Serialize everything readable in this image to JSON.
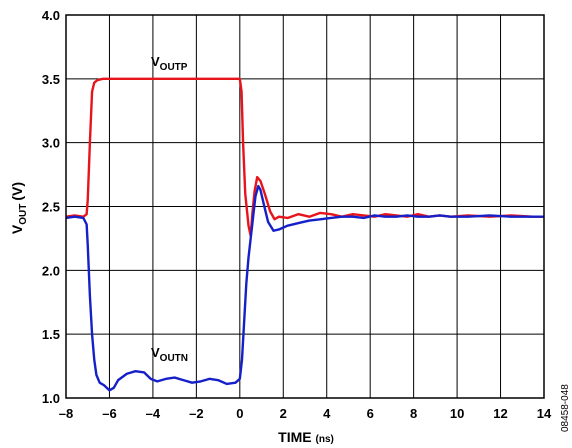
{
  "chart_data": {
    "type": "line",
    "xlabel": {
      "main": "TIME",
      "unit": "(ns)"
    },
    "ylabel": {
      "prefix": "V",
      "subscript": "OUT",
      "unit": "(V)"
    },
    "xlim": [
      -8,
      14
    ],
    "ylim": [
      1.0,
      4.0
    ],
    "x_ticks": [
      -8,
      -6,
      -4,
      -2,
      0,
      2,
      4,
      6,
      8,
      10,
      12,
      14
    ],
    "x_tick_labels": [
      "–8",
      "–6",
      "–4",
      "–2",
      "0",
      "2",
      "4",
      "6",
      "8",
      "10",
      "12",
      "14"
    ],
    "y_ticks": [
      1.0,
      1.5,
      2.0,
      2.5,
      3.0,
      3.5,
      4.0
    ],
    "y_tick_labels": [
      "1.0",
      "1.5",
      "2.0",
      "2.5",
      "3.0",
      "3.5",
      "4.0"
    ],
    "grid": true,
    "figure_id": "08458-048",
    "series": [
      {
        "name": "VOUTP",
        "label_main": "V",
        "label_sub": "OUTP",
        "color": "#e8141c",
        "points": [
          [
            -8.0,
            2.42
          ],
          [
            -7.6,
            2.43
          ],
          [
            -7.2,
            2.42
          ],
          [
            -7.05,
            2.44
          ],
          [
            -7.0,
            2.55
          ],
          [
            -6.9,
            3.0
          ],
          [
            -6.8,
            3.4
          ],
          [
            -6.7,
            3.47
          ],
          [
            -6.55,
            3.49
          ],
          [
            -6.3,
            3.5
          ],
          [
            -3.0,
            3.5
          ],
          [
            0.0,
            3.5
          ],
          [
            0.08,
            3.4
          ],
          [
            0.15,
            3.0
          ],
          [
            0.25,
            2.6
          ],
          [
            0.4,
            2.35
          ],
          [
            0.5,
            2.27
          ],
          [
            0.58,
            2.45
          ],
          [
            0.68,
            2.62
          ],
          [
            0.8,
            2.73
          ],
          [
            0.95,
            2.7
          ],
          [
            1.15,
            2.6
          ],
          [
            1.4,
            2.46
          ],
          [
            1.6,
            2.4
          ],
          [
            1.8,
            2.42
          ],
          [
            2.2,
            2.41
          ],
          [
            2.7,
            2.44
          ],
          [
            3.2,
            2.42
          ],
          [
            3.7,
            2.45
          ],
          [
            4.2,
            2.44
          ],
          [
            4.7,
            2.42
          ],
          [
            5.2,
            2.44
          ],
          [
            5.7,
            2.43
          ],
          [
            6.2,
            2.42
          ],
          [
            6.7,
            2.44
          ],
          [
            7.2,
            2.43
          ],
          [
            7.7,
            2.42
          ],
          [
            8.2,
            2.44
          ],
          [
            8.7,
            2.42
          ],
          [
            9.2,
            2.43
          ],
          [
            9.7,
            2.42
          ],
          [
            10.5,
            2.43
          ],
          [
            11.5,
            2.42
          ],
          [
            12.5,
            2.43
          ],
          [
            13.5,
            2.42
          ],
          [
            14.0,
            2.42
          ]
        ]
      },
      {
        "name": "VOUTN",
        "label_main": "V",
        "label_sub": "OUTN",
        "color": "#1620c8",
        "points": [
          [
            -8.0,
            2.41
          ],
          [
            -7.6,
            2.42
          ],
          [
            -7.2,
            2.41
          ],
          [
            -7.05,
            2.36
          ],
          [
            -7.0,
            2.2
          ],
          [
            -6.9,
            1.8
          ],
          [
            -6.8,
            1.5
          ],
          [
            -6.7,
            1.3
          ],
          [
            -6.6,
            1.18
          ],
          [
            -6.45,
            1.12
          ],
          [
            -6.25,
            1.1
          ],
          [
            -6.0,
            1.06
          ],
          [
            -5.8,
            1.08
          ],
          [
            -5.6,
            1.14
          ],
          [
            -5.2,
            1.19
          ],
          [
            -4.8,
            1.21
          ],
          [
            -4.4,
            1.2
          ],
          [
            -4.1,
            1.15
          ],
          [
            -3.8,
            1.13
          ],
          [
            -3.4,
            1.15
          ],
          [
            -3.0,
            1.16
          ],
          [
            -2.6,
            1.14
          ],
          [
            -2.2,
            1.12
          ],
          [
            -1.8,
            1.13
          ],
          [
            -1.4,
            1.15
          ],
          [
            -1.0,
            1.14
          ],
          [
            -0.6,
            1.11
          ],
          [
            -0.2,
            1.12
          ],
          [
            0.0,
            1.15
          ],
          [
            0.1,
            1.3
          ],
          [
            0.2,
            1.6
          ],
          [
            0.3,
            1.9
          ],
          [
            0.4,
            2.1
          ],
          [
            0.5,
            2.25
          ],
          [
            0.6,
            2.4
          ],
          [
            0.72,
            2.58
          ],
          [
            0.85,
            2.66
          ],
          [
            0.95,
            2.63
          ],
          [
            1.1,
            2.52
          ],
          [
            1.3,
            2.38
          ],
          [
            1.55,
            2.31
          ],
          [
            1.8,
            2.32
          ],
          [
            2.2,
            2.35
          ],
          [
            2.7,
            2.37
          ],
          [
            3.2,
            2.39
          ],
          [
            3.7,
            2.4
          ],
          [
            4.2,
            2.41
          ],
          [
            4.7,
            2.42
          ],
          [
            5.2,
            2.42
          ],
          [
            5.7,
            2.41
          ],
          [
            6.2,
            2.43
          ],
          [
            6.7,
            2.42
          ],
          [
            7.2,
            2.42
          ],
          [
            7.7,
            2.43
          ],
          [
            8.2,
            2.42
          ],
          [
            8.7,
            2.42
          ],
          [
            9.2,
            2.43
          ],
          [
            9.7,
            2.42
          ],
          [
            10.5,
            2.42
          ],
          [
            11.5,
            2.43
          ],
          [
            12.5,
            2.42
          ],
          [
            13.5,
            2.42
          ],
          [
            14.0,
            2.42
          ]
        ]
      }
    ]
  }
}
